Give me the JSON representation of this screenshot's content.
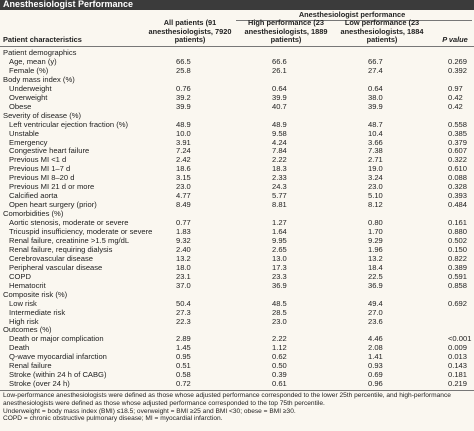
{
  "title": "Anesthesiologist Performance",
  "header": {
    "label": "Patient characteristics",
    "all": "All patients (91 anesthesiologists, 7920 patients)",
    "group": "Anesthesiologist performance",
    "high": "High performance (23 anesthesiologists, 1889 patients)",
    "low": "Low performance (23 anesthesiologists, 1884 patients)",
    "p": "P value"
  },
  "groups": [
    {
      "title": "Patient demographics",
      "rows": [
        [
          "Age, mean (y)",
          "66.5",
          "66.6",
          "66.7",
          "0.269"
        ],
        [
          "Female (%)",
          "25.8",
          "26.1",
          "27.4",
          "0.392"
        ]
      ]
    },
    {
      "title": "Body mass index (%)",
      "rows": [
        [
          "Underweight",
          "0.76",
          "0.64",
          "0.64",
          "0.97"
        ],
        [
          "Overweight",
          "39.2",
          "39.9",
          "38.0",
          "0.42"
        ],
        [
          "Obese",
          "39.9",
          "40.7",
          "39.9",
          "0.42"
        ]
      ]
    },
    {
      "title": "Severity of disease (%)",
      "rows": [
        [
          "Left ventricular ejection fraction (%)",
          "48.9",
          "48.9",
          "48.7",
          "0.558"
        ],
        [
          "Unstable",
          "10.0",
          "9.58",
          "10.4",
          "0.385"
        ],
        [
          "Emergency",
          "3.91",
          "4.24",
          "3.66",
          "0.379"
        ],
        [
          "Congestive heart failure",
          "7.24",
          "7.84",
          "7.38",
          "0.607"
        ],
        [
          "Previous MI <1 d",
          "2.42",
          "2.22",
          "2.71",
          "0.322"
        ],
        [
          "Previous MI 1–7 d",
          "18.6",
          "18.3",
          "19.0",
          "0.610"
        ],
        [
          "Previous MI 8–20 d",
          "3.15",
          "2.33",
          "3.24",
          "0.088"
        ],
        [
          "Previous MI 21 d or more",
          "23.0",
          "24.3",
          "23.0",
          "0.328"
        ],
        [
          "Calcified aorta",
          "4.77",
          "5.77",
          "5.10",
          "0.393"
        ],
        [
          "Open heart surgery (prior)",
          "8.49",
          "8.81",
          "8.12",
          "0.484"
        ]
      ]
    },
    {
      "title": "Comorbidities (%)",
      "rows": [
        [
          "Aortic stenosis, moderate or severe",
          "0.77",
          "1.27",
          "0.80",
          "0.161"
        ],
        [
          "Tricuspid insufficiency, moderate or severe",
          "1.83",
          "1.64",
          "1.70",
          "0.880"
        ],
        [
          "Renal failure, creatinine >1.5 mg/dL",
          "9.32",
          "9.95",
          "9.29",
          "0.502"
        ],
        [
          "Renal failure, requiring dialysis",
          "2.40",
          "2.65",
          "1.96",
          "0.150"
        ],
        [
          "Cerebrovascular disease",
          "13.2",
          "13.0",
          "13.2",
          "0.822"
        ],
        [
          "Peripheral vascular disease",
          "18.0",
          "17.3",
          "18.4",
          "0.389"
        ],
        [
          "COPD",
          "23.1",
          "23.3",
          "22.5",
          "0.591"
        ],
        [
          "Hematocrit",
          "37.0",
          "36.9",
          "36.9",
          "0.858"
        ]
      ]
    },
    {
      "title": "Composite risk (%)",
      "rows": [
        [
          "Low risk",
          "50.4",
          "48.5",
          "49.4",
          "0.692"
        ],
        [
          "Intermediate risk",
          "27.3",
          "28.5",
          "27.0",
          null
        ],
        [
          "High risk",
          "22.3",
          "23.0",
          "23.6",
          null
        ]
      ]
    },
    {
      "title": "Outcomes (%)",
      "rows": [
        [
          "Death or major complication",
          "2.89",
          "2.22",
          "4.46",
          "<0.001"
        ],
        [
          "Death",
          "1.45",
          "1.12",
          "2.08",
          "0.009"
        ],
        [
          "Q-wave myocardial infarction",
          "0.95",
          "0.62",
          "1.41",
          "0.013"
        ],
        [
          "Renal failure",
          "0.51",
          "0.50",
          "0.93",
          "0.143"
        ],
        [
          "Stroke (within 24 h of CABG)",
          "0.58",
          "0.39",
          "0.69",
          "0.181"
        ],
        [
          "Stroke (over 24 h)",
          "0.72",
          "0.61",
          "0.96",
          "0.219"
        ]
      ]
    }
  ],
  "footnotes": [
    "Low-performance anesthesiologists were defined as those whose adjusted performance corresponded to the lower 25th percentile, and high-performance anesthesiologists were defined as those whose adjusted performance corresponded to the top 75th percentile.",
    "Underweight = body mass index (BMI) ≤18.5; overweight = BMI ≥25 and BMI <30; obese = BMI ≥30.",
    "COPD = chronic obstructive pulmonary disease; MI = myocardial infarction."
  ]
}
